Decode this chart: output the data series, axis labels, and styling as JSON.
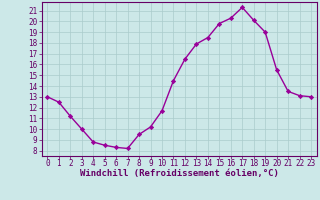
{
  "hours": [
    0,
    1,
    2,
    3,
    4,
    5,
    6,
    7,
    8,
    9,
    10,
    11,
    12,
    13,
    14,
    15,
    16,
    17,
    18,
    19,
    20,
    21,
    22,
    23
  ],
  "values": [
    13.0,
    12.5,
    11.2,
    10.0,
    8.8,
    8.5,
    8.3,
    8.2,
    9.5,
    10.2,
    11.7,
    14.5,
    16.5,
    17.9,
    18.5,
    19.8,
    20.3,
    21.3,
    20.1,
    19.0,
    15.5,
    13.5,
    13.1,
    13.0
  ],
  "line_color": "#990099",
  "marker": "D",
  "marker_size": 2.2,
  "linewidth": 1.0,
  "bg_color": "#cce8e8",
  "grid_color": "#aacccc",
  "xlabel": "Windchill (Refroidissement éolien,°C)",
  "xlabel_color": "#660066",
  "tick_color": "#660066",
  "axis_color": "#660066",
  "ylim": [
    7.5,
    21.8
  ],
  "xlim": [
    -0.5,
    23.5
  ],
  "yticks": [
    8,
    9,
    10,
    11,
    12,
    13,
    14,
    15,
    16,
    17,
    18,
    19,
    20,
    21
  ],
  "xticks": [
    0,
    1,
    2,
    3,
    4,
    5,
    6,
    7,
    8,
    9,
    10,
    11,
    12,
    13,
    14,
    15,
    16,
    17,
    18,
    19,
    20,
    21,
    22,
    23
  ],
  "xlabel_fontsize": 6.5,
  "tick_fontsize": 5.5
}
